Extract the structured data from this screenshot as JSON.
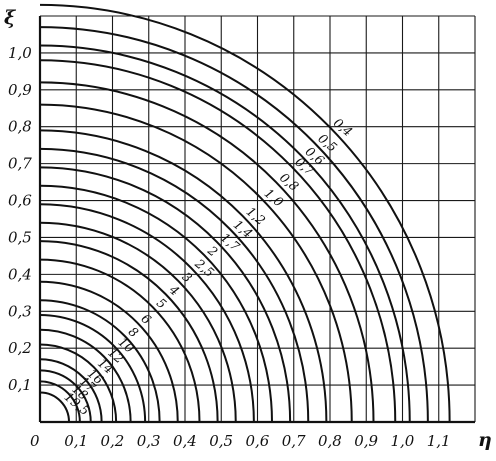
{
  "chart_data": {
    "type": "line",
    "title": "",
    "xlabel": "η",
    "ylabel": "ξ",
    "origin_label": "0",
    "xlim": [
      0,
      1.2
    ],
    "ylim": [
      0,
      1.1
    ],
    "grid": true,
    "x_ticks": [
      "0,1",
      "0,2",
      "0,3",
      "0,4",
      "0,5",
      "0,6",
      "0,7",
      "0,8",
      "0,9",
      "1,0",
      "1,1"
    ],
    "y_ticks": [
      "0,1",
      "0,2",
      "0,3",
      "0,4",
      "0,5",
      "0,6",
      "0,7",
      "0,8",
      "0,9",
      "1,0"
    ],
    "series": [
      {
        "name": "0,4",
        "radius": 1.13
      },
      {
        "name": "0,5",
        "radius": 1.07
      },
      {
        "name": "0,6",
        "radius": 1.02
      },
      {
        "name": "0,7",
        "radius": 0.98
      },
      {
        "name": "0,8",
        "radius": 0.92
      },
      {
        "name": "1,0",
        "radius": 0.86
      },
      {
        "name": "1,2",
        "radius": 0.79
      },
      {
        "name": "1,4",
        "radius": 0.74
      },
      {
        "name": "1,7",
        "radius": 0.69
      },
      {
        "name": "2",
        "radius": 0.64
      },
      {
        "name": "2,5",
        "radius": 0.59
      },
      {
        "name": "3",
        "radius": 0.54
      },
      {
        "name": "4",
        "radius": 0.49
      },
      {
        "name": "5",
        "radius": 0.44
      },
      {
        "name": "6",
        "radius": 0.38
      },
      {
        "name": "8",
        "radius": 0.33
      },
      {
        "name": "10",
        "radius": 0.29
      },
      {
        "name": "12",
        "radius": 0.25
      },
      {
        "name": "14",
        "radius": 0.21
      },
      {
        "name": "16",
        "radius": 0.17
      },
      {
        "name": "17",
        "radius": 0.14
      },
      {
        "name": "18",
        "radius": 0.11
      },
      {
        "name": "19,5",
        "radius": 0.08
      }
    ]
  }
}
